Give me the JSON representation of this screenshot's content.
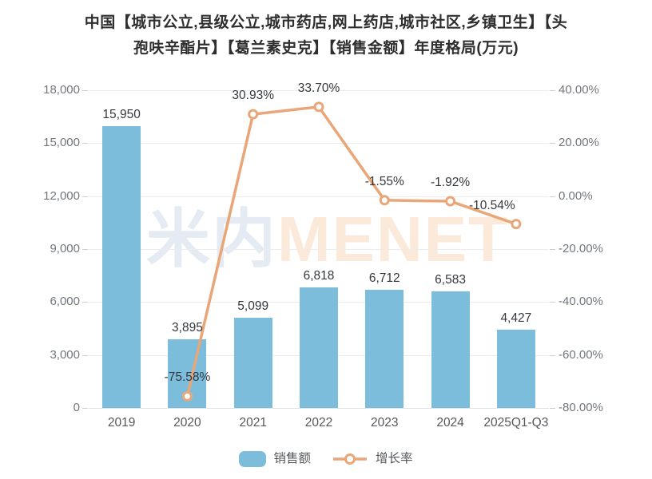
{
  "header": {
    "title_lines": [
      "中国【城市公立,县级公立,城市药店,网上药店,城市社区,乡镇卫生】【头",
      "孢呋辛酯片】【葛兰素史克】【销售金额】年度格局(万元)"
    ]
  },
  "watermark": {
    "cn": "米内",
    "en": "MENET"
  },
  "colors": {
    "bar": "#7cbddb",
    "line": "#e9a678",
    "marker_fill": "#ffffff",
    "grid": "#ececec",
    "label_dark": "#34383c",
    "tick_gray": "#72777d"
  },
  "chart_data": {
    "type": "bar",
    "combo": "bar+line",
    "title": "中国【城市公立,县级公立,城市药店,网上药店,城市社区,乡镇卫生】【头孢呋辛酯片】【葛兰素史克】【销售金额】年度格局(万元)",
    "categories": [
      "2019",
      "2020",
      "2021",
      "2022",
      "2023",
      "2024",
      "2025Q1-Q3"
    ],
    "series": [
      {
        "name": "销售额",
        "type": "bar",
        "axis": "left",
        "values": [
          15950,
          3895,
          5099,
          6818,
          6712,
          6583,
          4427
        ],
        "labels": [
          "15,950",
          "3,895",
          "5,099",
          "6,818",
          "6,712",
          "6,583",
          "4,427"
        ]
      },
      {
        "name": "增长率",
        "type": "line",
        "axis": "right",
        "values": [
          null,
          -75.58,
          30.93,
          33.7,
          -1.55,
          -1.92,
          -10.54
        ],
        "labels": [
          "",
          "-75.58%",
          "30.93%",
          "33.70%",
          "-1.55%",
          "-1.92%",
          "-10.54%"
        ]
      }
    ],
    "left_axis": {
      "min": 0,
      "max": 18000,
      "ticks": [
        "0",
        "3,000",
        "6,000",
        "9,000",
        "12,000",
        "15,000",
        "18,000"
      ]
    },
    "right_axis": {
      "min": -80,
      "max": 40,
      "ticks": [
        "-80.00%",
        "-60.00%",
        "-40.00%",
        "-20.00%",
        "0.00%",
        "20.00%",
        "40.00%"
      ]
    },
    "legend": [
      "销售额",
      "增长率"
    ],
    "legend_position": "bottom",
    "grid": true
  }
}
